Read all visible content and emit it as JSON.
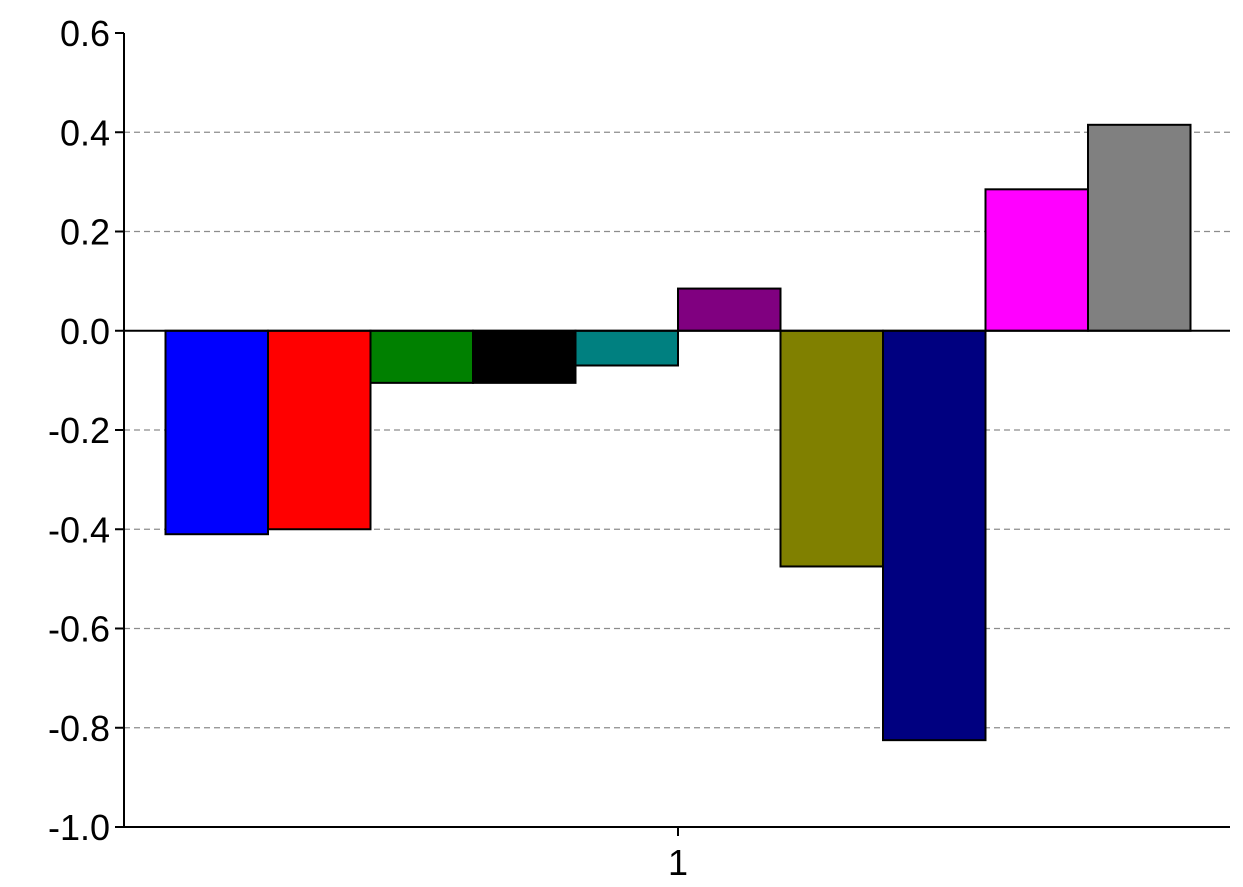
{
  "chart_data": {
    "type": "bar",
    "title": "",
    "xlabel": "",
    "ylabel": "",
    "categories": [
      "1"
    ],
    "ylim": [
      -1.0,
      0.6
    ],
    "yticks": [
      "0.6",
      "0.4",
      "0.2",
      "0.0",
      "-0.2",
      "-0.4",
      "-0.6",
      "-0.8",
      "-1.0"
    ],
    "grid": "horizontal dashed",
    "legend": "none",
    "series": [
      {
        "values": [
          -0.41
        ],
        "color": "#0000ff"
      },
      {
        "values": [
          -0.4
        ],
        "color": "#ff0000"
      },
      {
        "values": [
          -0.105
        ],
        "color": "#008000"
      },
      {
        "values": [
          -0.105
        ],
        "color": "#000000"
      },
      {
        "values": [
          -0.07
        ],
        "color": "#008080"
      },
      {
        "values": [
          0.085
        ],
        "color": "#800080"
      },
      {
        "values": [
          -0.475
        ],
        "color": "#808000"
      },
      {
        "values": [
          -0.825
        ],
        "color": "#000080"
      },
      {
        "values": [
          0.285
        ],
        "color": "#ff00ff"
      },
      {
        "values": [
          0.415
        ],
        "color": "#808080"
      }
    ]
  }
}
